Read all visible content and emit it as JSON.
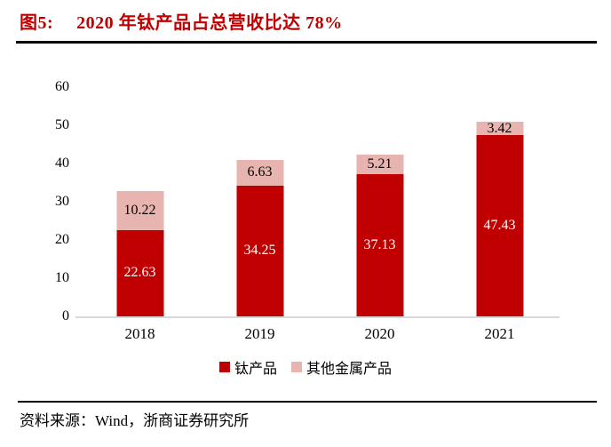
{
  "figure": {
    "label": "图5:",
    "title": "2020 年钛产品占总营收比达 78%"
  },
  "chart_data": {
    "type": "bar",
    "stacked": true,
    "title": "2020 年钛产品占总营收比达 78%",
    "categories": [
      "2018",
      "2019",
      "2020",
      "2021"
    ],
    "series": [
      {
        "name": "钛产品",
        "color": "#c00000",
        "label_color": "#ffffff",
        "values": [
          22.63,
          34.25,
          37.13,
          47.43
        ]
      },
      {
        "name": "其他金属产品",
        "color": "#e7b4b0",
        "label_color": "#000000",
        "values": [
          10.22,
          6.63,
          5.21,
          3.42
        ]
      }
    ],
    "ylim": [
      0,
      60
    ],
    "yticks": [
      0,
      10,
      20,
      30,
      40,
      50,
      60
    ],
    "xlabel": "",
    "ylabel": "",
    "grid": false,
    "legend_position": "bottom",
    "totals": [
      32.85,
      40.88,
      42.34,
      50.85
    ]
  },
  "source": {
    "text": "资料来源：Wind，浙商证券研究所"
  },
  "colors": {
    "accent": "#c00000",
    "bar_secondary": "#e7b4b0",
    "axis_line": "#d9d9d9",
    "rule": "#000000",
    "background": "#ffffff"
  }
}
